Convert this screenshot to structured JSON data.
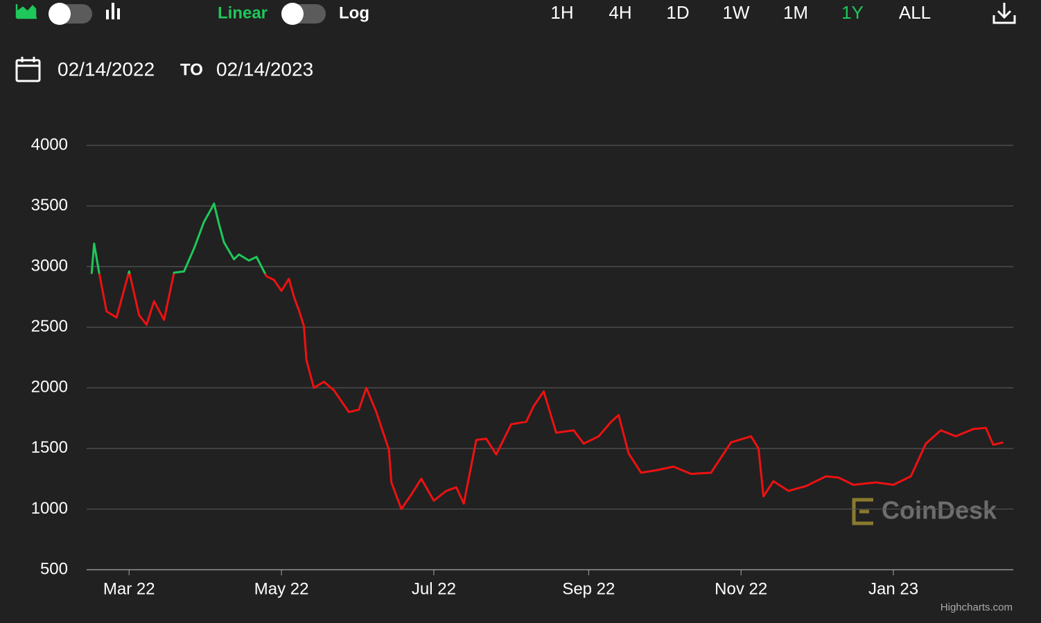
{
  "toolbar": {
    "scale_options": [
      "Linear",
      "Log"
    ],
    "active_scale": "Linear",
    "timeframes": [
      "1H",
      "4H",
      "1D",
      "1W",
      "1M",
      "1Y",
      "ALL"
    ],
    "active_timeframe": "1Y"
  },
  "date_range": {
    "from": "02/14/2022",
    "connector": "TO",
    "to": "02/14/2023"
  },
  "watermark": "CoinDesk",
  "credit": "Highcharts.com",
  "chart_data": {
    "type": "line",
    "x": [
      "2022-02-14",
      "2022-02-15",
      "2022-02-17",
      "2022-02-20",
      "2022-02-24",
      "2022-03-01",
      "2022-03-05",
      "2022-03-08",
      "2022-03-11",
      "2022-03-15",
      "2022-03-19",
      "2022-03-23",
      "2022-03-27",
      "2022-03-31",
      "2022-04-03",
      "2022-04-04",
      "2022-04-06",
      "2022-04-08",
      "2022-04-12",
      "2022-04-14",
      "2022-04-18",
      "2022-04-21",
      "2022-04-25",
      "2022-04-28",
      "2022-05-01",
      "2022-05-04",
      "2022-05-06",
      "2022-05-08",
      "2022-05-10",
      "2022-05-11",
      "2022-05-14",
      "2022-05-18",
      "2022-05-22",
      "2022-05-28",
      "2022-06-01",
      "2022-06-04",
      "2022-06-08",
      "2022-06-13",
      "2022-06-14",
      "2022-06-18",
      "2022-06-22",
      "2022-06-26",
      "2022-07-01",
      "2022-07-06",
      "2022-07-10",
      "2022-07-13",
      "2022-07-18",
      "2022-07-22",
      "2022-07-26",
      "2022-08-01",
      "2022-08-07",
      "2022-08-10",
      "2022-08-14",
      "2022-08-19",
      "2022-08-26",
      "2022-08-30",
      "2022-09-05",
      "2022-09-10",
      "2022-09-13",
      "2022-09-17",
      "2022-09-22",
      "2022-09-28",
      "2022-10-05",
      "2022-10-12",
      "2022-10-20",
      "2022-10-28",
      "2022-11-05",
      "2022-11-08",
      "2022-11-10",
      "2022-11-14",
      "2022-11-20",
      "2022-11-27",
      "2022-12-05",
      "2022-12-10",
      "2022-12-16",
      "2022-12-25",
      "2023-01-01",
      "2023-01-08",
      "2023-01-14",
      "2023-01-20",
      "2023-01-26",
      "2023-02-02",
      "2023-02-07",
      "2023-02-10",
      "2023-02-14"
    ],
    "values": [
      2940,
      3190,
      2950,
      2630,
      2580,
      2960,
      2600,
      2520,
      2715,
      2560,
      2950,
      2960,
      3150,
      3370,
      3480,
      3520,
      3350,
      3200,
      3060,
      3100,
      3050,
      3080,
      2920,
      2890,
      2800,
      2900,
      2750,
      2640,
      2510,
      2230,
      2000,
      2050,
      1980,
      1800,
      1820,
      2000,
      1800,
      1490,
      1220,
      1000,
      1120,
      1250,
      1070,
      1150,
      1180,
      1045,
      1570,
      1580,
      1450,
      1700,
      1720,
      1850,
      1970,
      1630,
      1650,
      1540,
      1600,
      1720,
      1775,
      1460,
      1300,
      1320,
      1350,
      1290,
      1300,
      1550,
      1600,
      1500,
      1105,
      1230,
      1150,
      1190,
      1270,
      1260,
      1200,
      1220,
      1200,
      1270,
      1540,
      1650,
      1600,
      1660,
      1670,
      1530,
      1550
    ],
    "up_color": "#1fc85a",
    "down_color": "#ee1111",
    "xlim": [
      "2022-02-12",
      "2023-02-18"
    ],
    "xticks": [
      {
        "value": "2022-03-01",
        "label": "Mar 22"
      },
      {
        "value": "2022-05-01",
        "label": "May 22"
      },
      {
        "value": "2022-07-01",
        "label": "Jul 22"
      },
      {
        "value": "2022-09-01",
        "label": "Sep 22"
      },
      {
        "value": "2022-11-01",
        "label": "Nov 22"
      },
      {
        "value": "2023-01-01",
        "label": "Jan 23"
      }
    ],
    "ylim": [
      500,
      4000
    ],
    "yticks": [
      500,
      1000,
      1500,
      2000,
      2500,
      3000,
      3500,
      4000
    ],
    "grid": true
  }
}
